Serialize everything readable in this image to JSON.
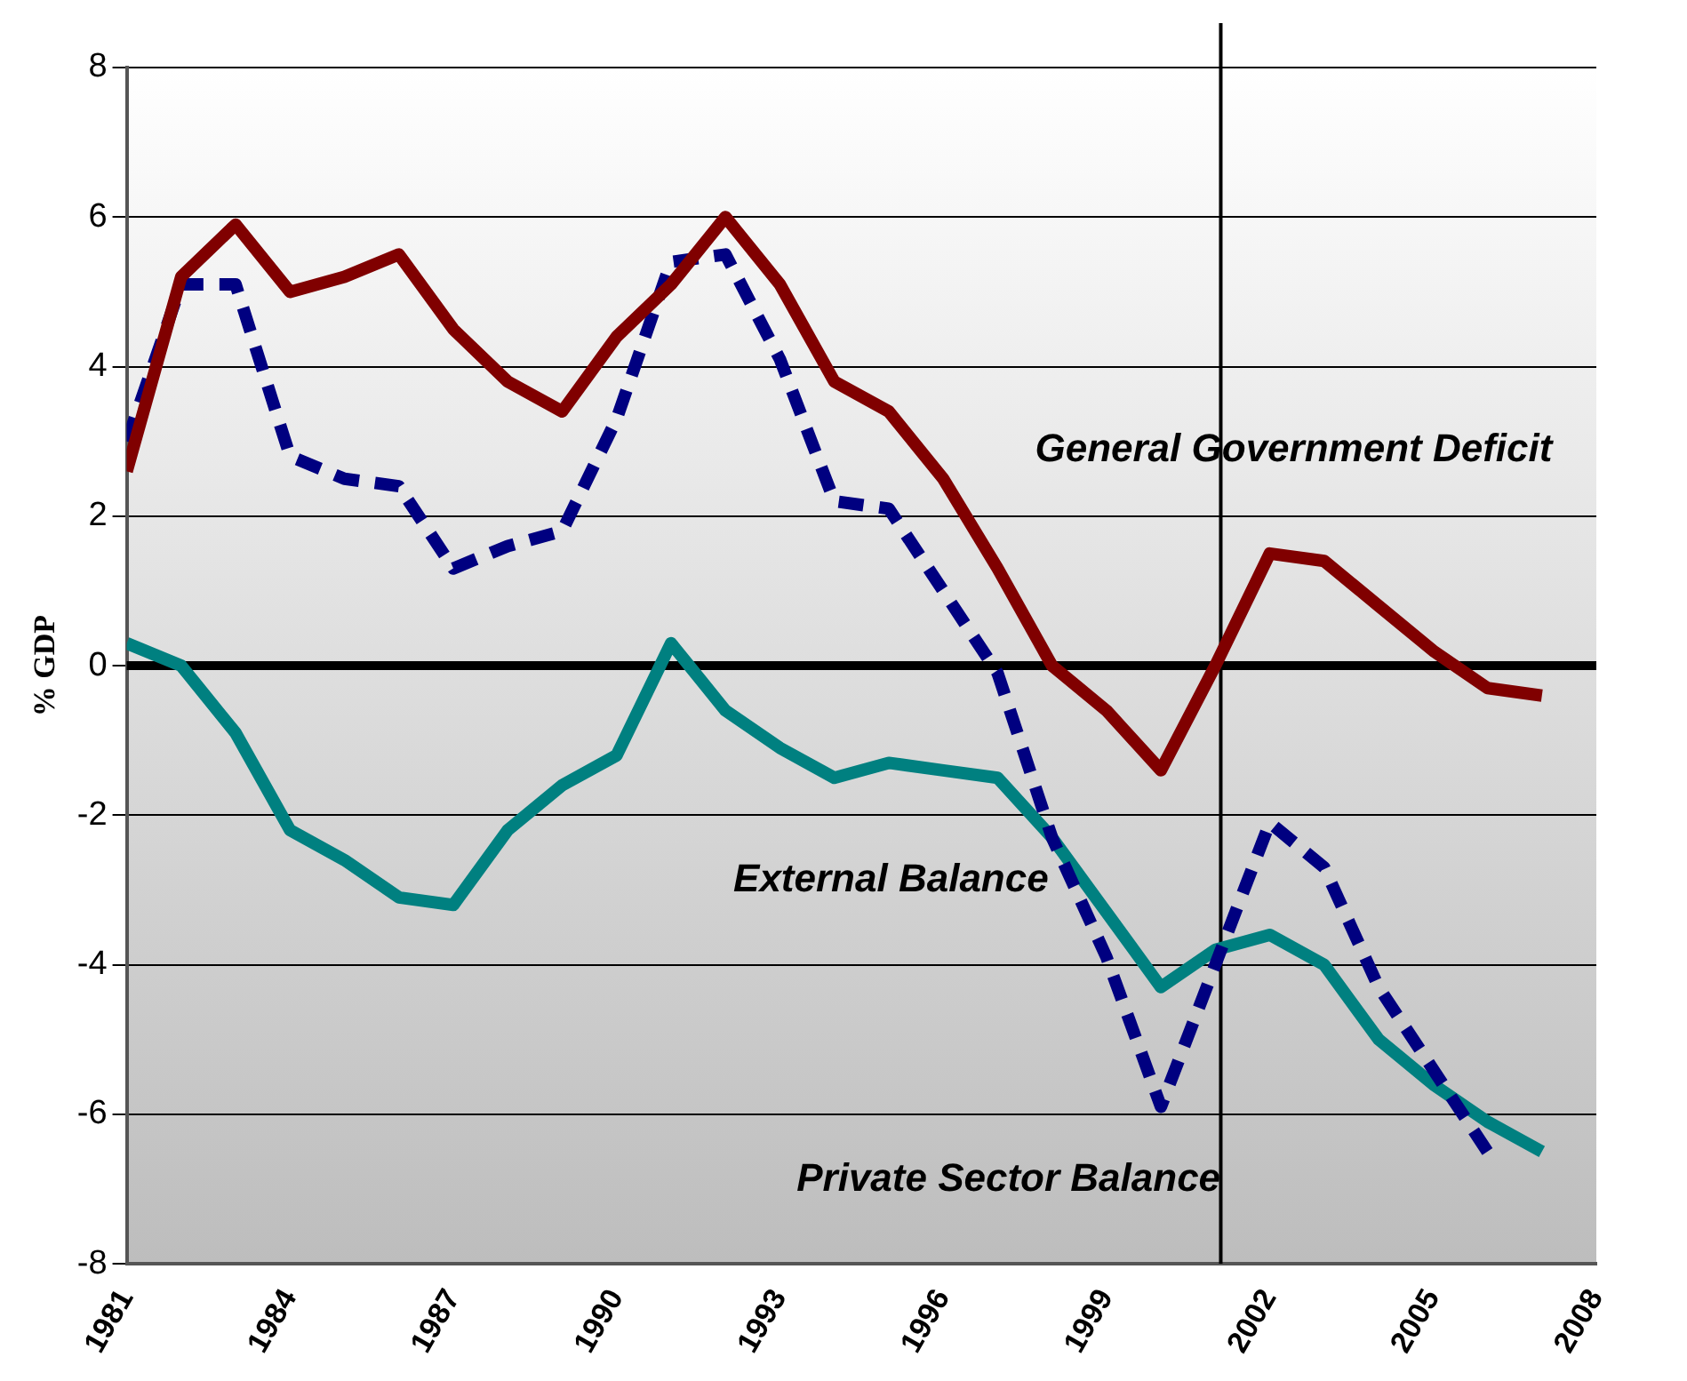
{
  "chart_data": {
    "type": "line",
    "ylabel": "% GDP",
    "x": [
      1981,
      1982,
      1983,
      1984,
      1985,
      1986,
      1987,
      1988,
      1989,
      1990,
      1991,
      1992,
      1993,
      1994,
      1995,
      1996,
      1997,
      1998,
      1999,
      2000,
      2001,
      2002,
      2003,
      2004,
      2005,
      2006,
      2007
    ],
    "xlim": [
      1981,
      2008
    ],
    "xticks": [
      1981,
      1984,
      1987,
      1990,
      1993,
      1996,
      1999,
      2002,
      2005,
      2008
    ],
    "ylim": [
      -8,
      8
    ],
    "yticks": [
      -8,
      -6,
      -4,
      -2,
      0,
      2,
      4,
      6,
      8
    ],
    "grid": "y",
    "legend": false,
    "marker": "none",
    "series": [
      {
        "name": "General Government Deficit",
        "color": "#800000",
        "line_style": "solid",
        "values": [
          2.6,
          5.2,
          5.9,
          5.0,
          5.2,
          5.5,
          4.5,
          3.8,
          3.4,
          4.4,
          5.1,
          6.0,
          5.1,
          3.8,
          3.4,
          2.5,
          1.3,
          0.0,
          -0.6,
          -1.4,
          0.0,
          1.5,
          1.4,
          0.8,
          0.2,
          -0.3,
          -0.4
        ]
      },
      {
        "name": "Private Sector Balance",
        "color": "#000080",
        "line_style": "dashed",
        "values": [
          3.0,
          5.1,
          5.1,
          2.8,
          2.5,
          2.4,
          1.3,
          1.6,
          1.8,
          3.3,
          5.4,
          5.5,
          4.1,
          2.2,
          2.1,
          1.0,
          -0.1,
          -2.3,
          -3.9,
          -5.9,
          -4.0,
          -2.1,
          -2.7,
          -4.3,
          -5.4,
          -6.5,
          null
        ]
      },
      {
        "name": "External Balance",
        "color": "#008080",
        "line_style": "solid",
        "values": [
          0.3,
          0.0,
          -0.9,
          -2.2,
          -2.6,
          -3.1,
          -3.2,
          -2.2,
          -1.6,
          -1.2,
          0.3,
          -0.6,
          -1.1,
          -1.5,
          -1.3,
          -1.4,
          -1.5,
          -2.3,
          -3.3,
          -4.3,
          -3.8,
          -3.6,
          -4.0,
          -5.0,
          -5.6,
          -6.1,
          -6.5
        ]
      }
    ],
    "ref_lines": [
      {
        "axis": "y",
        "value": 0,
        "color": "#000000"
      },
      {
        "axis": "x",
        "value": 2001.1,
        "color": "#000000"
      }
    ]
  }
}
